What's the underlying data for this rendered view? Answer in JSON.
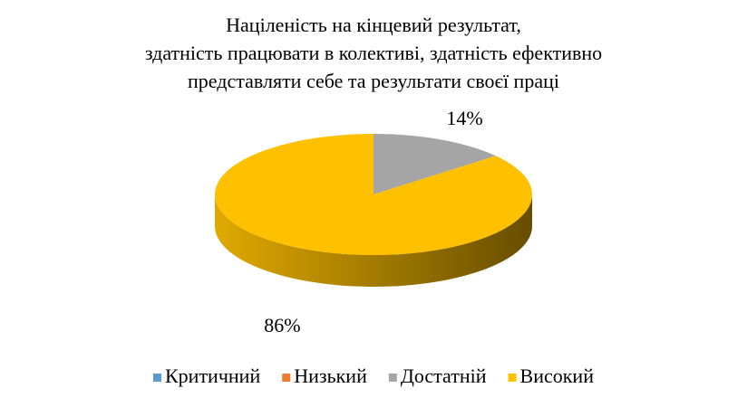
{
  "chart_data": {
    "type": "pie",
    "title": [
      "Націленість  на кінцевий результат,",
      "здатність працювати в колективі, здатність ефективно",
      "представляти себе та результати своєї праці"
    ],
    "categories": [
      "Критичний",
      "Низький",
      "Достатній",
      "Високий"
    ],
    "values": [
      0,
      0,
      14,
      86
    ],
    "value_labels": [
      null,
      null,
      "14%",
      "86%"
    ],
    "colors": [
      "#5b9bd5",
      "#ed7d31",
      "#a5a5a5",
      "#ffc000"
    ],
    "legend": "bottom"
  }
}
